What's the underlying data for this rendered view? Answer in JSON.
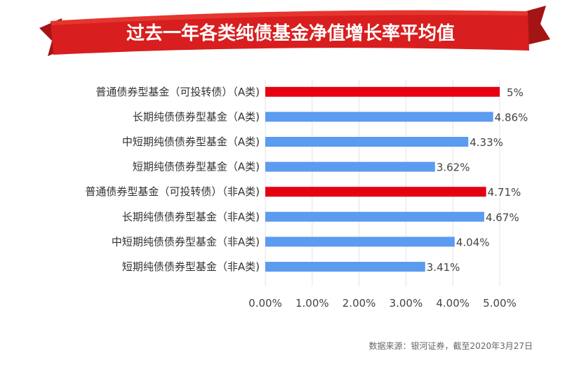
{
  "header": {
    "title": "过去一年各类纯债基金净值增长率平均值"
  },
  "colors": {
    "ribbon": "#d81e1e",
    "ribbon_dark": "#9e1212",
    "highlight_bar": "#e60012",
    "normal_bar": "#5b9bf0"
  },
  "chart_data": {
    "type": "bar",
    "orientation": "horizontal",
    "title": "过去一年各类纯债基金净值增长率平均值",
    "categories": [
      "普通债券型基金（可投转债）（A类)",
      "长期纯债债券型基金（A类)",
      "中短期纯债债券型基金（A类)",
      "短期纯债债券型基金（A类)",
      "普通债券型基金（可投转债）（非A类)",
      "长期纯债债券型基金（非A类)",
      "中短期纯债债券型基金（非A类)",
      "短期纯债债券型基金（非A类)"
    ],
    "values": [
      5.0,
      4.86,
      4.33,
      3.62,
      4.71,
      4.67,
      4.04,
      3.41
    ],
    "value_labels": [
      "5%",
      "4.86%",
      "4.33%",
      "3.62%",
      "4.71%",
      "4.67%",
      "4.04%",
      "3.41%"
    ],
    "highlighted": [
      true,
      false,
      false,
      false,
      true,
      false,
      false,
      false
    ],
    "xlim": [
      0,
      5
    ],
    "xticks": [
      0,
      1,
      2,
      3,
      4,
      5
    ],
    "xtick_labels": [
      "0.00%",
      "1.00%",
      "2.00%",
      "3.00%",
      "4.00%",
      "5.00%"
    ],
    "grid": true,
    "legend": "none"
  },
  "footer": {
    "source": "数据来源：银河证券，截至2020年3月27日"
  }
}
